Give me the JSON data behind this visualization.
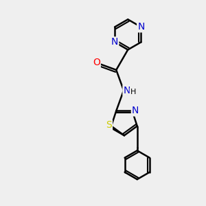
{
  "background_color": "#efefef",
  "atom_colors": {
    "C": "#000000",
    "N": "#0000cc",
    "O": "#ff0000",
    "S": "#cccc00",
    "H": "#000000"
  },
  "bond_color": "#000000",
  "bond_width": 1.8,
  "font_size_atom": 10,
  "font_size_small": 8,
  "xlim": [
    -0.8,
    1.0
  ],
  "ylim": [
    -1.4,
    1.2
  ]
}
